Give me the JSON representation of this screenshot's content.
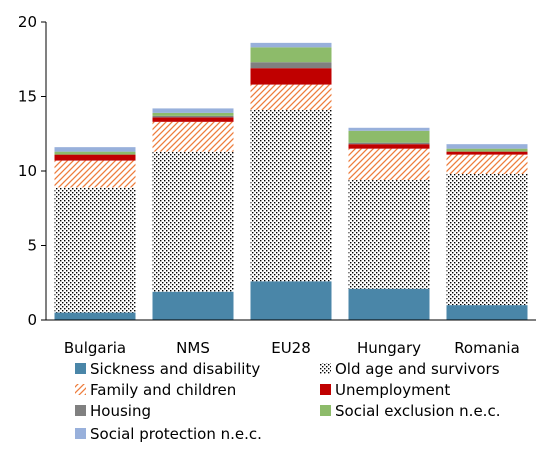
{
  "chart_data": {
    "type": "bar",
    "stacked": true,
    "categories": [
      "Bulgaria",
      "NMS",
      "EU28",
      "Hungary",
      "Romania"
    ],
    "ylim": [
      0,
      20
    ],
    "yticks": [
      "0",
      "5",
      "10",
      "15",
      "20"
    ],
    "grid": false,
    "legend_position": "bottom",
    "series": [
      {
        "name": "Sickness and disability",
        "values": [
          0.5,
          1.9,
          2.6,
          2.1,
          1.0
        ],
        "color": "#4a86a8",
        "pattern": "solid"
      },
      {
        "name": "Old age and survivors",
        "values": [
          8.4,
          9.4,
          11.5,
          7.3,
          8.8
        ],
        "color": "#000000",
        "pattern": "dots"
      },
      {
        "name": "Family and children",
        "values": [
          1.8,
          2.0,
          1.7,
          2.1,
          1.3
        ],
        "color": "#ee7d3c",
        "pattern": "diagonal"
      },
      {
        "name": "Unemployment",
        "values": [
          0.4,
          0.3,
          1.1,
          0.3,
          0.2
        ],
        "color": "#c00000",
        "pattern": "solid"
      },
      {
        "name": "Housing",
        "values": [
          0.0,
          0.1,
          0.4,
          0.1,
          0.0
        ],
        "color": "#808080",
        "pattern": "solid"
      },
      {
        "name": "Social exclusion n.e.c.",
        "values": [
          0.2,
          0.2,
          1.0,
          0.8,
          0.2
        ],
        "color": "#8dbb6a",
        "pattern": "solid"
      },
      {
        "name": "Social protection n.e.c.",
        "values": [
          0.3,
          0.3,
          0.3,
          0.2,
          0.3
        ],
        "color": "#98b0db",
        "pattern": "solid"
      }
    ]
  }
}
